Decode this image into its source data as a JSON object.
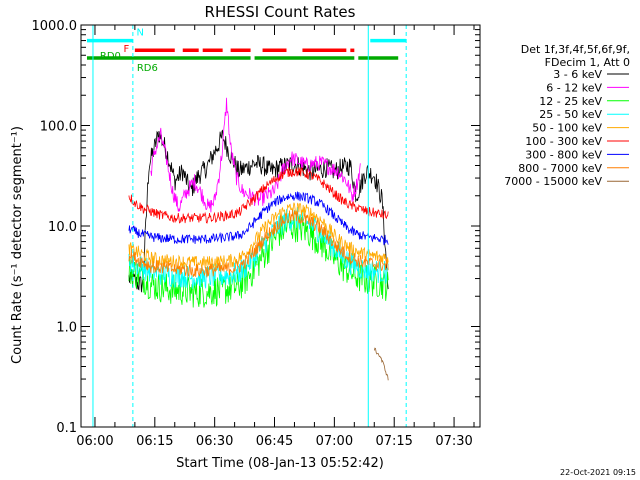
{
  "chart_data": {
    "type": "line",
    "title": "RHESSI Count Rates",
    "ylabel": "Count Rate (s⁻¹ detector segment⁻¹)",
    "xlabel": "Start Time (08-Jan-13 05:52:42)",
    "yscale": "log",
    "ylim": [
      0.1,
      1000.0
    ],
    "y_ticks": [
      "0.1",
      "1.0",
      "10.0",
      "100.0",
      "1000.0"
    ],
    "x_ticks": [
      "06:00",
      "06:15",
      "06:30",
      "06:45",
      "07:00",
      "07:15",
      "07:30"
    ],
    "grid": false,
    "legend_position": "right",
    "legend_header": [
      "Det 1f,3f,4f,5f,6f,9f,",
      "FDecim 1, Att 0"
    ],
    "series": [
      {
        "name": "3 - 6 keV",
        "color": "#000000",
        "x": [
          8.5,
          9.5,
          10.5,
          12,
          13.5,
          15,
          16,
          18,
          20,
          22,
          24,
          26,
          28,
          30,
          32,
          34,
          36,
          38,
          40,
          42,
          44,
          46,
          48,
          50,
          52,
          54,
          56,
          58,
          60,
          62,
          64,
          65.5,
          66.5,
          68,
          70,
          72,
          73.5
        ],
        "y": [
          3.0,
          2.9,
          2.7,
          2.6,
          40,
          62,
          85,
          55,
          28,
          35,
          22,
          32,
          38,
          55,
          78,
          50,
          35,
          38,
          42,
          40,
          35,
          38,
          40,
          42,
          38,
          35,
          36,
          38,
          35,
          38,
          40,
          20,
          25,
          35,
          32,
          18,
          2.2
        ]
      },
      {
        "name": "6 - 12 keV",
        "color": "#ff00ff",
        "x": [
          14,
          15,
          16.5,
          18,
          19.5,
          21,
          23,
          25,
          27,
          28.5,
          30,
          31,
          32,
          33,
          34,
          35.5,
          37,
          39,
          41,
          43,
          45,
          47,
          49,
          51,
          53,
          55,
          57,
          59,
          61,
          63,
          64.5,
          65.5,
          66.5
        ],
        "y": [
          35,
          55,
          80,
          45,
          22,
          15,
          22,
          28,
          20,
          15,
          18,
          30,
          60,
          175,
          60,
          30,
          22,
          20,
          18,
          20,
          22,
          35,
          48,
          44,
          40,
          42,
          42,
          38,
          35,
          28,
          20,
          25,
          38
        ]
      },
      {
        "name": "12 - 25 keV",
        "color": "#00ff00",
        "x": [
          8.5,
          10,
          12,
          14,
          16,
          18,
          20,
          22,
          24,
          26,
          28,
          30,
          32,
          34,
          36,
          38,
          40,
          42,
          44,
          46,
          48,
          50,
          52,
          54,
          56,
          58,
          60,
          62,
          64,
          66,
          68,
          70,
          72,
          73.5
        ],
        "y": [
          3.6,
          3.4,
          3.1,
          2.6,
          2.5,
          2.4,
          2.3,
          2.3,
          2.2,
          2.2,
          2.2,
          2.3,
          2.3,
          2.4,
          2.5,
          3.0,
          3.8,
          5.0,
          6.5,
          8.5,
          9.8,
          10.0,
          9.5,
          8.5,
          7.2,
          6.0,
          4.8,
          4.0,
          3.5,
          3.1,
          2.9,
          2.8,
          2.7,
          2.5
        ]
      },
      {
        "name": "25 - 50 keV",
        "color": "#00ffff",
        "x": [
          8.5,
          10,
          12,
          14,
          16,
          18,
          20,
          22,
          24,
          26,
          28,
          30,
          32,
          34,
          36,
          38,
          40,
          42,
          44,
          46,
          48,
          50,
          52,
          54,
          56,
          58,
          60,
          62,
          64,
          66,
          68,
          70,
          72,
          73.5
        ],
        "y": [
          4.6,
          4.2,
          3.9,
          3.5,
          3.4,
          3.3,
          3.2,
          3.2,
          3.1,
          3.1,
          3.1,
          3.2,
          3.2,
          3.3,
          3.4,
          4.0,
          5.0,
          6.5,
          8.0,
          10.0,
          11.5,
          12.0,
          11.5,
          10.5,
          9.0,
          7.5,
          6.0,
          5.0,
          4.3,
          3.9,
          3.7,
          3.6,
          3.5,
          3.4
        ]
      },
      {
        "name": "50 - 100 keV",
        "color": "#ffaa00",
        "x": [
          8.5,
          10,
          12,
          14,
          16,
          18,
          20,
          22,
          24,
          26,
          28,
          30,
          32,
          34,
          36,
          38,
          40,
          42,
          44,
          46,
          48,
          50,
          52,
          54,
          56,
          58,
          60,
          62,
          64,
          66,
          68,
          70,
          72,
          73.5
        ],
        "y": [
          6.0,
          5.6,
          5.2,
          4.8,
          4.6,
          4.5,
          4.4,
          4.4,
          4.3,
          4.3,
          4.3,
          4.4,
          4.4,
          4.5,
          4.7,
          5.5,
          7.0,
          9.0,
          11.0,
          13.0,
          14.5,
          15.0,
          14.5,
          13.5,
          12.0,
          10.0,
          8.0,
          6.8,
          6.0,
          5.5,
          5.2,
          5.0,
          4.9,
          4.8
        ]
      },
      {
        "name": "100 - 300 keV",
        "color": "#ff0000",
        "x": [
          8.5,
          10,
          12,
          14,
          16,
          18,
          20,
          22,
          24,
          26,
          28,
          30,
          32,
          34,
          36,
          38,
          40,
          42,
          44,
          46,
          48,
          50,
          52,
          54,
          56,
          58,
          60,
          62,
          64,
          66,
          68,
          70,
          72,
          73.5
        ],
        "y": [
          20,
          17,
          15,
          14,
          13,
          12.5,
          12,
          12,
          12,
          12,
          12,
          12.2,
          12.5,
          13,
          13.5,
          16,
          19,
          23,
          27,
          31,
          34,
          35,
          34,
          32,
          29,
          25,
          21,
          18,
          16,
          15,
          14,
          13.5,
          13,
          12.5
        ]
      },
      {
        "name": "300 - 800 keV",
        "color": "#0000ff",
        "x": [
          8.5,
          10,
          12,
          14,
          16,
          18,
          20,
          22,
          24,
          26,
          28,
          30,
          32,
          34,
          36,
          38,
          40,
          42,
          44,
          46,
          48,
          50,
          52,
          54,
          56,
          58,
          60,
          62,
          64,
          66,
          68,
          70,
          72,
          73.5
        ],
        "y": [
          9.5,
          8.8,
          8.2,
          7.8,
          7.6,
          7.5,
          7.4,
          7.4,
          7.4,
          7.4,
          7.4,
          7.5,
          7.6,
          7.8,
          8.0,
          9.0,
          11.0,
          13.5,
          16.0,
          18.0,
          19.5,
          20.0,
          19.5,
          18.5,
          17.0,
          15.0,
          12.5,
          10.5,
          9.0,
          8.2,
          7.8,
          7.6,
          7.4,
          7.2
        ]
      },
      {
        "name": "800 - 7000 keV",
        "color": "#ff7f00",
        "x": [
          8.5,
          10,
          12,
          14,
          16,
          18,
          20,
          22,
          24,
          26,
          28,
          30,
          32,
          34,
          36,
          38,
          40,
          42,
          44,
          46,
          48,
          50,
          52,
          54,
          56,
          58,
          60,
          62,
          64,
          66,
          68,
          70,
          72,
          73.5
        ],
        "y": [
          5.2,
          4.8,
          4.4,
          4.0,
          3.9,
          3.8,
          3.7,
          3.7,
          3.6,
          3.6,
          3.6,
          3.7,
          3.7,
          3.8,
          3.9,
          4.5,
          5.6,
          7.2,
          8.8,
          10.5,
          12.0,
          12.5,
          12.0,
          11.0,
          9.8,
          8.2,
          6.6,
          5.6,
          4.9,
          4.5,
          4.3,
          4.2,
          4.1,
          4.0
        ]
      },
      {
        "name": "7000 - 15000 keV",
        "color": "#996633",
        "x": [
          70,
          71.5,
          72.5,
          73.5
        ],
        "y": [
          0.6,
          0.5,
          0.4,
          0.3
        ]
      }
    ],
    "annotations": {
      "labels": [
        "N",
        "F",
        "RD0",
        "RD6"
      ],
      "bars": [
        {
          "label": "N",
          "color": "#00ffff",
          "y": 700,
          "segments": [
            [
              -2,
              9.5
            ],
            [
              69,
              78
            ]
          ]
        },
        {
          "label": "F",
          "color": "#ff0000",
          "y": 560,
          "segments": [
            [
              10,
              20
            ],
            [
              22,
              26
            ],
            [
              27,
              32
            ],
            [
              34,
              39
            ],
            [
              42,
              48
            ],
            [
              52,
              63
            ],
            [
              64,
              65
            ]
          ]
        },
        {
          "label": "RD6",
          "color": "#00aa00",
          "y": 470,
          "segments": [
            [
              -2,
              39
            ],
            [
              40,
              65
            ],
            [
              66,
              76
            ]
          ]
        }
      ],
      "vlines_solid": [
        -0.5,
        68.5
      ],
      "vlines_dashed": [
        9.5,
        78
      ]
    }
  },
  "footer_date": "22-Oct-2021 09:15"
}
